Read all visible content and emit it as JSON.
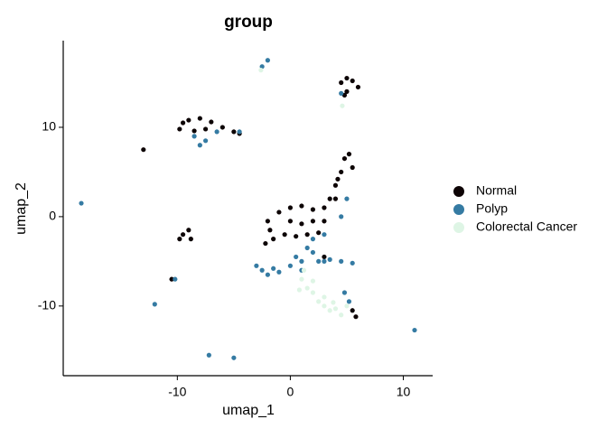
{
  "chart_data": {
    "type": "scatter",
    "title": "group",
    "x_label": "umap_1",
    "y_label": "umap_2",
    "xlim": [
      -20.1,
      12.6
    ],
    "ylim": [
      -17.8,
      19.7
    ],
    "xticks": [
      -10,
      0,
      10
    ],
    "yticks": [
      -10,
      0,
      10
    ],
    "grid": false,
    "legend": "right",
    "series": [
      {
        "name": "Normal",
        "color": "#0d0405",
        "x": [
          -1.8,
          -1,
          0,
          1,
          2,
          3,
          3.5,
          4,
          4.5,
          4.8,
          5.2,
          5.5,
          4,
          -2,
          -1.5,
          -0.5,
          0.5,
          1.5,
          2.5,
          3,
          0,
          1,
          2,
          -2.2,
          4.2,
          -9.5,
          -9,
          -8,
          -7,
          -6,
          -5,
          -4.5,
          -9.8,
          -8.5,
          -7.5,
          -9.5,
          -9,
          -9.8,
          -8.8,
          4.5,
          5,
          5.5,
          5,
          6,
          4.8,
          -13,
          -10.5,
          5.5,
          5.8,
          3
        ],
        "values": [
          -1.5,
          0.5,
          1,
          1.2,
          0.8,
          1,
          2,
          3.5,
          5,
          6.5,
          7,
          5.5,
          2,
          -0.5,
          -2.5,
          -2,
          -2.2,
          -2,
          -1.8,
          -0.5,
          -0.5,
          -0.8,
          -0.5,
          -3,
          4.2,
          10.5,
          10.8,
          11,
          10.6,
          10,
          9.5,
          9.3,
          9.8,
          9.6,
          9.8,
          -2,
          -1.5,
          -2.5,
          -2.5,
          15,
          15.5,
          15.2,
          14,
          14.5,
          13.6,
          7.5,
          -7,
          -10.5,
          -11.2,
          -4.5
        ]
      },
      {
        "name": "Polyp",
        "color": "#357ba3",
        "x": [
          -3,
          -2.5,
          -2,
          -1.5,
          -1,
          0,
          0.5,
          1,
          1.5,
          2,
          2.5,
          3,
          3.5,
          4.5,
          5.5,
          2,
          3,
          4.5,
          5,
          1,
          -8,
          -8.5,
          -7.5,
          -6.5,
          -4.5,
          -18.5,
          -12,
          11,
          -7.2,
          -5,
          -2,
          -2.5,
          4.5,
          4.8,
          5.2,
          -10.2
        ],
        "values": [
          -5.5,
          -6,
          -6.5,
          -5.8,
          -6.2,
          -5.5,
          -4.5,
          -5,
          -3.5,
          -4,
          -5,
          -5,
          -4.8,
          -5,
          -5.2,
          -2.5,
          -2,
          0,
          2,
          -6,
          8,
          9,
          8.5,
          9.5,
          9.5,
          1.5,
          -9.8,
          -12.7,
          -15.5,
          -15.8,
          17.5,
          16.8,
          13.8,
          -8.5,
          -9.5,
          -7
        ]
      },
      {
        "name": "Colorectal Cancer",
        "color": "#def5e5",
        "x": [
          1,
          1.5,
          2,
          2.5,
          3,
          3.5,
          4,
          4.5,
          5,
          1.2,
          2,
          3,
          0.8,
          -2.6,
          4.6,
          3.8
        ],
        "values": [
          -7,
          -8,
          -8.5,
          -9.5,
          -10,
          -10.5,
          -10.3,
          -11,
          -10,
          -6,
          -7.2,
          -9,
          -8.2,
          16.4,
          12.4,
          -9.6
        ]
      }
    ]
  }
}
